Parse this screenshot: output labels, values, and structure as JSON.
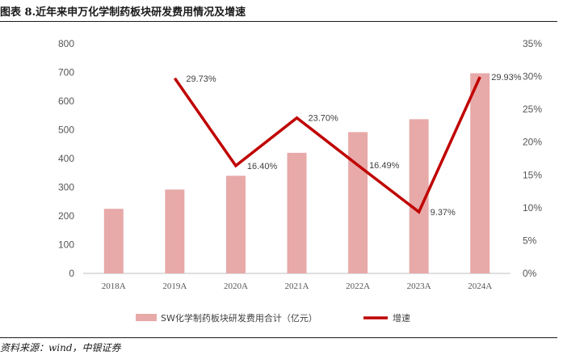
{
  "title": "图表 8.近年来申万化学制药板块研发费用情况及增速",
  "source": "资料来源：wind，中银证券",
  "chart_data": {
    "type": "bar",
    "categories": [
      "2018A",
      "2019A",
      "2020A",
      "2021A",
      "2022A",
      "2023A",
      "2024A"
    ],
    "series": [
      {
        "name": "SW化学制药板块研发费用合计（亿元）",
        "axis": "left",
        "chart_type": "bar",
        "color": "#e8a9a9",
        "values": [
          225,
          292,
          340,
          420,
          492,
          537,
          697
        ]
      },
      {
        "name": "增速",
        "axis": "right",
        "chart_type": "line",
        "color": "#c00000",
        "values": [
          null,
          29.73,
          16.4,
          23.7,
          16.49,
          9.37,
          29.93
        ],
        "labels": [
          null,
          "29.73%",
          "16.40%",
          "23.70%",
          "16.49%",
          "9.37%",
          "29.93%"
        ]
      }
    ],
    "y_left": {
      "min": 0,
      "max": 800,
      "ticks": [
        "0",
        "100",
        "200",
        "300",
        "400",
        "500",
        "600",
        "700",
        "800"
      ]
    },
    "y_right": {
      "min": 0,
      "max": 35,
      "ticks": [
        "0%",
        "5%",
        "10%",
        "15%",
        "20%",
        "25%",
        "30%",
        "35%"
      ]
    },
    "grid": false,
    "legend": "bottom"
  }
}
